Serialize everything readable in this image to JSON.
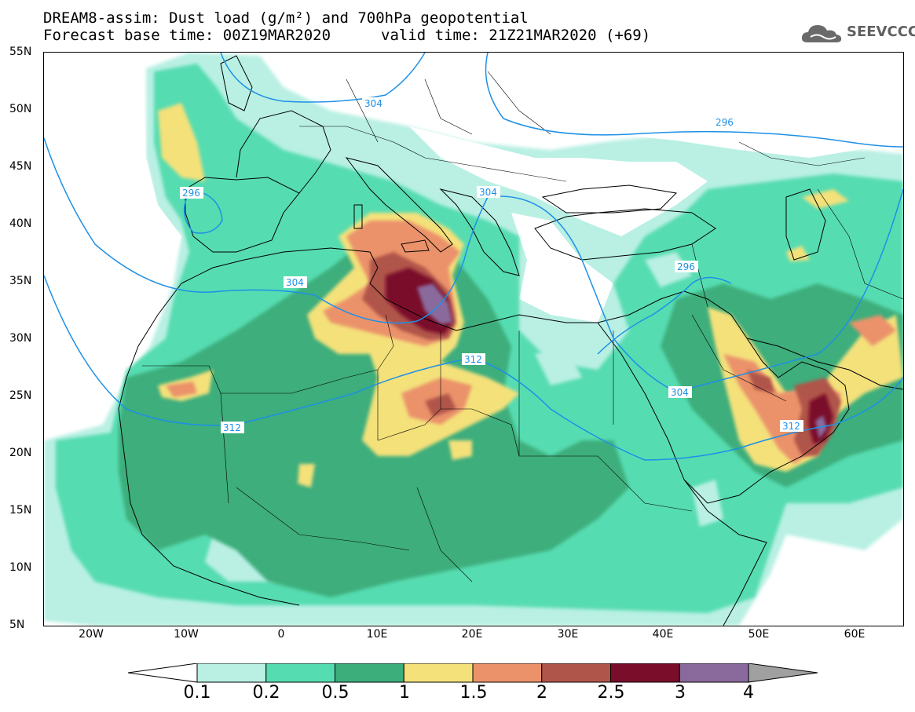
{
  "header": {
    "title_line1": "DREAM8-assim: Dust load (g/m²) and 700hPa geopotential",
    "title_line2_base": "Forecast base time: 00Z19MAR2020",
    "title_line2_valid": "valid time: 21Z21MAR2020 (+69)",
    "logo_text": "SEEVCCC",
    "logo_icon": "cloud-icon"
  },
  "axes": {
    "lat_labels": [
      "55N",
      "50N",
      "45N",
      "40N",
      "35N",
      "30N",
      "25N",
      "20N",
      "15N",
      "10N",
      "5N"
    ],
    "lon_labels": [
      "20W",
      "10W",
      "0",
      "10E",
      "20E",
      "30E",
      "40E",
      "50E",
      "60E"
    ]
  },
  "contours": {
    "labels": [
      "304",
      "296",
      "304",
      "296",
      "304",
      "312",
      "312",
      "304",
      "296",
      "312"
    ]
  },
  "colorbar": {
    "labels": [
      "0.1",
      "0.2",
      "0.5",
      "1",
      "1.5",
      "2",
      "2.5",
      "3",
      "4"
    ],
    "colors": [
      "#b9f0e3",
      "#56dcb1",
      "#3cae7c",
      "#f4e17a",
      "#eb926a",
      "#b0554a",
      "#7a0d2a",
      "#8a6a9c",
      "#a0a0a0"
    ]
  }
}
